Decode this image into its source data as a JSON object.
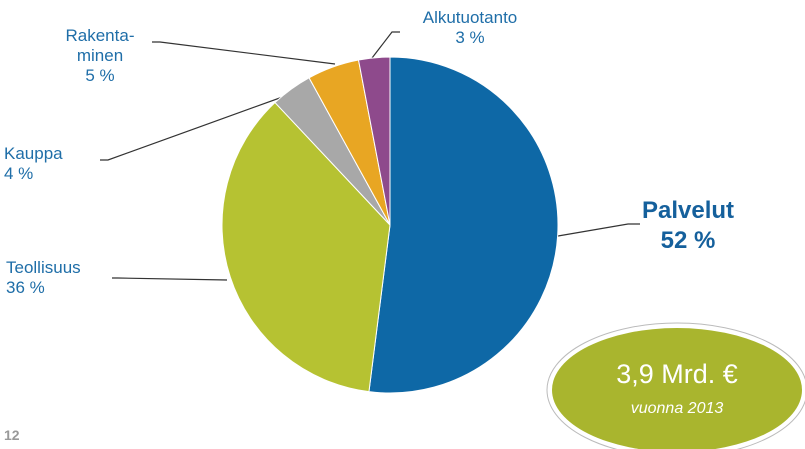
{
  "chart_data": {
    "type": "pie",
    "categories": [
      "Palvelut",
      "Teollisuus",
      "Kauppa",
      "Rakenta-\nminen",
      "Alkutuotanto"
    ],
    "values": [
      52,
      36,
      4,
      5,
      3
    ],
    "value_labels": [
      "52 %",
      "36 %",
      "4 %",
      "5 %",
      "3 %"
    ],
    "colors": [
      "#0e68a6",
      "#b6c232",
      "#a8a8a8",
      "#e8a623",
      "#8e4a8c"
    ]
  },
  "badge": {
    "amount": "3,9 Mrd. €",
    "year": "vuonna 2013"
  },
  "page_number": "12"
}
